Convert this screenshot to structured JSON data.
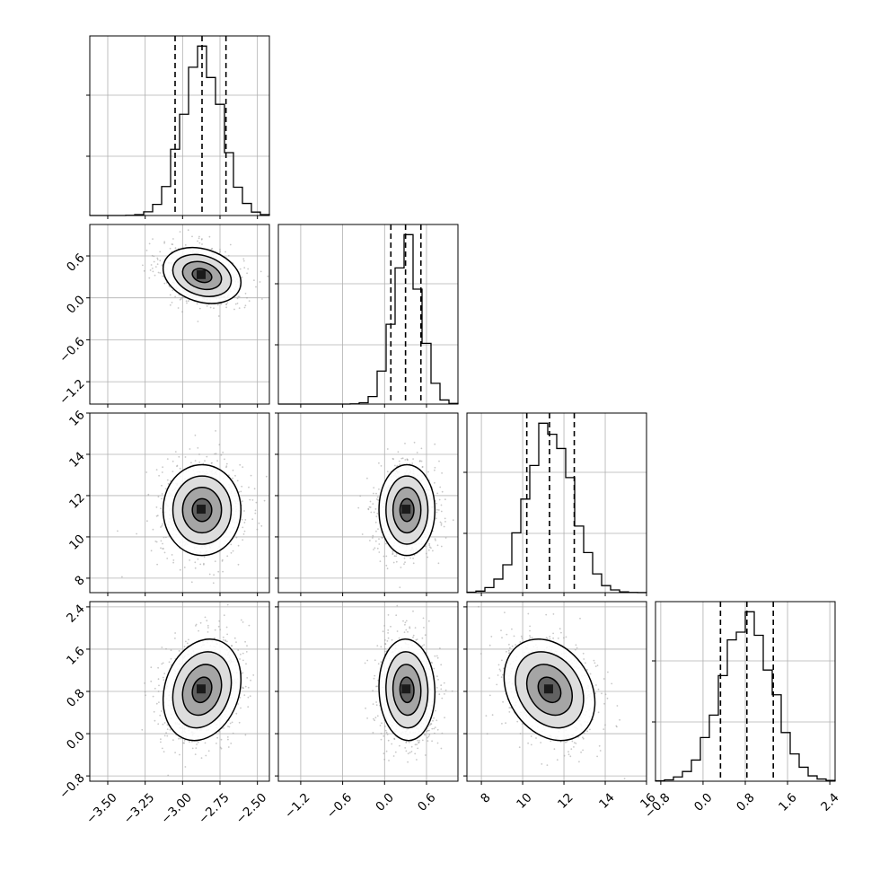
{
  "colors": {
    "background": "#ffffff",
    "line": "#000000",
    "grid": "#b0b0b0",
    "scatter": "#9a9a9a",
    "density_cmap": [
      "#ffffff",
      "#d9d9d9",
      "#9e9e9e",
      "#5a5a5a",
      "#1a1a1a"
    ]
  },
  "chart_data": {
    "type": "corner",
    "parameters": [
      {
        "index": 0,
        "range": [
          -3.62,
          -2.42
        ],
        "ticks": [
          -3.5,
          -3.25,
          -3.0,
          -2.75,
          -2.5
        ],
        "tick_labels": [
          "−3.50",
          "−3.25",
          "−3.00",
          "−2.75",
          "−2.50"
        ],
        "mean": -2.87,
        "sigma": 0.13,
        "quantiles": [
          -3.05,
          -2.87,
          -2.71
        ]
      },
      {
        "index": 1,
        "range": [
          -1.52,
          1.05
        ],
        "ticks": [
          -1.2,
          -0.6,
          0.0,
          0.6
        ],
        "tick_labels": [
          "−1.2",
          "−0.6",
          "0.0",
          "0.6"
        ],
        "mean": 0.32,
        "sigma": 0.2,
        "quantiles": [
          0.09,
          0.3,
          0.52
        ]
      },
      {
        "index": 2,
        "range": [
          7.3,
          16.0
        ],
        "ticks": [
          8,
          10,
          12,
          14,
          16
        ],
        "tick_labels": [
          "8",
          "10",
          "12",
          "14",
          "16"
        ],
        "mean": 11.3,
        "sigma": 1.1,
        "quantiles": [
          10.2,
          11.3,
          12.5
        ]
      },
      {
        "index": 3,
        "range": [
          -0.9,
          2.5
        ],
        "ticks": [
          -0.8,
          0.0,
          0.8,
          1.6,
          2.4
        ],
        "tick_labels": [
          "−0.8",
          "0.0",
          "0.8",
          "1.6",
          "2.4"
        ],
        "mean": 0.83,
        "sigma": 0.48,
        "quantiles": [
          0.33,
          0.83,
          1.33
        ]
      }
    ],
    "correlations": [
      {
        "pair": [
          0,
          1
        ],
        "rho": -0.25
      },
      {
        "pair": [
          0,
          2
        ],
        "rho": 0.0
      },
      {
        "pair": [
          0,
          3
        ],
        "rho": 0.2
      },
      {
        "pair": [
          1,
          2
        ],
        "rho": 0.0
      },
      {
        "pair": [
          1,
          3
        ],
        "rho": -0.05
      },
      {
        "pair": [
          2,
          3
        ],
        "rho": -0.25
      }
    ],
    "contour_levels_sigma": [
      0.5,
      1.0,
      1.5,
      2.0
    ],
    "histogram_bins": 20,
    "grid": true,
    "legend": "none"
  }
}
